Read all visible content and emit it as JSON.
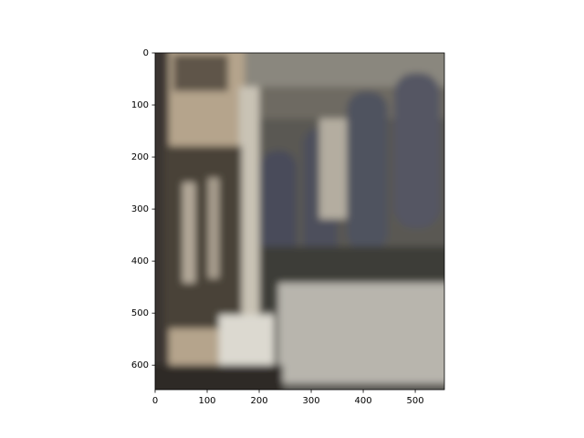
{
  "chart_data": {
    "type": "image",
    "xlim": [
      0,
      556
    ],
    "ylim": [
      647,
      0
    ],
    "xticks": [
      0,
      100,
      200,
      300,
      400,
      500
    ],
    "yticks": [
      0,
      100,
      200,
      300,
      400,
      500,
      600
    ]
  }
}
